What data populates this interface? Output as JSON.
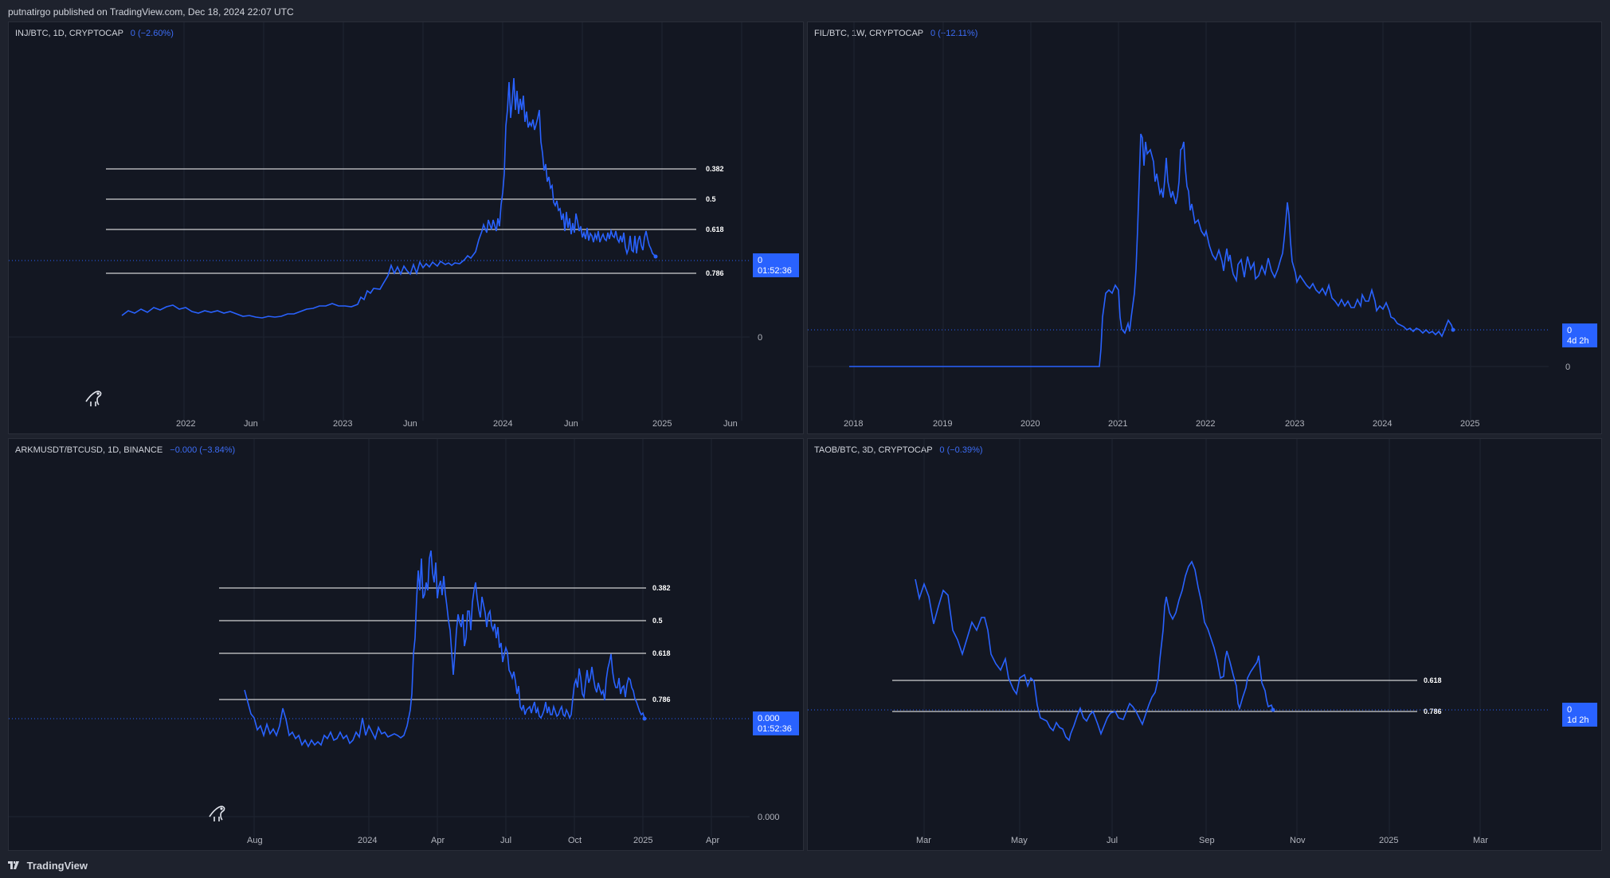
{
  "header": {
    "published": "putnatirgo published on TradingView.com, Dec 18, 2024 22:07 UTC"
  },
  "footer": {
    "brand": "TradingView",
    "logo_icon": "tradingview-logo-icon"
  },
  "colors": {
    "line": "#2962ff",
    "fib": "#ffffff",
    "price_box": "#2962ff",
    "background": "#131722"
  },
  "panels": [
    {
      "symbol": "INJ/BTC, 1D, CRYPTOCAP",
      "change": "0 (−2.60%)",
      "price_label": "0",
      "countdown": "01:52:36",
      "zero_label": "0",
      "x_ticks": [
        "2022",
        "Jun",
        "2023",
        "Jun",
        "2024",
        "Jun",
        "2025",
        "Jun"
      ],
      "fib_levels": [
        "0.382",
        "0.5",
        "0.618",
        "0.786"
      ],
      "has_logo": true
    },
    {
      "symbol": "FIL/BTC, 1W, CRYPTOCAP",
      "change": "0 (−12.11%)",
      "price_label": "0",
      "countdown": "4d 2h",
      "zero_label": "0",
      "x_ticks": [
        "2018",
        "2019",
        "2020",
        "2021",
        "2022",
        "2023",
        "2024",
        "2025"
      ],
      "fib_levels": [],
      "has_logo": false
    },
    {
      "symbol": "ARKMUSDT/BTCUSD, 1D, BINANCE",
      "change": "−0.000 (−3.84%)",
      "price_label": "0.000",
      "countdown": "01:52:36",
      "zero_label": "0.000",
      "x_ticks": [
        "Aug",
        "2024",
        "Apr",
        "Jul",
        "Oct",
        "2025",
        "Apr"
      ],
      "fib_levels": [
        "0.382",
        "0.5",
        "0.618",
        "0.786"
      ],
      "has_logo": true
    },
    {
      "symbol": "TAOB/BTC, 3D, CRYPTOCAP",
      "change": "0 (−0.39%)",
      "price_label": "0",
      "countdown": "1d 2h",
      "zero_label": "",
      "x_ticks": [
        "Mar",
        "May",
        "Jul",
        "Sep",
        "Nov",
        "2025",
        "Mar"
      ],
      "fib_levels": [
        "0.618",
        "0.786"
      ],
      "has_logo": false
    }
  ],
  "chart_data": [
    {
      "type": "line",
      "title": "INJ/BTC, 1D, CRYPTOCAP",
      "x": [
        "2021-09",
        "2021-11",
        "2022-01",
        "2022-03",
        "2022-05",
        "2022-07",
        "2022-09",
        "2022-11",
        "2023-01",
        "2023-03",
        "2023-05",
        "2023-07",
        "2023-09",
        "2023-11",
        "2023-12",
        "2024-01",
        "2024-03",
        "2024-05",
        "2024-07",
        "2024-09",
        "2024-11",
        "2024-12"
      ],
      "series": [
        {
          "values": [
            0.1,
            0.12,
            0.11,
            0.1,
            0.08,
            0.07,
            0.07,
            0.1,
            0.11,
            0.2,
            0.42,
            0.38,
            0.4,
            0.44,
            0.8,
            1.3,
            1.0,
            0.65,
            0.55,
            0.54,
            0.52,
            0.45
          ]
        }
      ],
      "y_range": [
        -0.4,
        1.4
      ],
      "fib_levels": [
        0.382,
        0.5,
        0.618,
        0.786
      ]
    },
    {
      "type": "line",
      "title": "FIL/BTC, 1W, CRYPTOCAP",
      "x": [
        "2017-12",
        "2018-06",
        "2019-01",
        "2019-06",
        "2020-01",
        "2020-06",
        "2020-10",
        "2020-11",
        "2021-01",
        "2021-04",
        "2021-06",
        "2021-09",
        "2022-01",
        "2022-06",
        "2023-01",
        "2023-04",
        "2023-06",
        "2024-01",
        "2024-04",
        "2024-09",
        "2024-12"
      ],
      "series": [
        {
          "values": [
            0,
            0,
            0,
            0,
            0,
            0,
            0,
            0.62,
            0.58,
            1.72,
            1.3,
            1.7,
            1.05,
            0.85,
            0.8,
            1.3,
            0.85,
            0.72,
            0.8,
            0.57,
            0.56
          ]
        }
      ],
      "y_range": [
        -0.5,
        2.0
      ]
    },
    {
      "type": "line",
      "title": "ARKMUSDT/BTCUSD, 1D, BINANCE",
      "x": [
        "2023-07",
        "2023-08",
        "2023-09",
        "2023-10",
        "2023-11",
        "2023-12",
        "2024-01",
        "2024-02",
        "2024-03",
        "2024-04",
        "2024-05",
        "2024-06",
        "2024-07",
        "2024-08",
        "2024-09",
        "2024-10",
        "2024-11",
        "2024-12"
      ],
      "series": [
        {
          "values": [
            0.68,
            0.59,
            0.55,
            0.56,
            0.52,
            0.55,
            0.57,
            0.6,
            1.15,
            0.95,
            0.96,
            0.82,
            0.7,
            0.68,
            0.72,
            0.76,
            0.75,
            0.66
          ]
        }
      ],
      "y_range": [
        0.3,
        1.3
      ],
      "fib_levels": [
        0.382,
        0.5,
        0.618,
        0.786
      ]
    },
    {
      "type": "line",
      "title": "TAOB/BTC, 3D, CRYPTOCAP",
      "x": [
        "2024-02-20",
        "2024-03-10",
        "2024-04-01",
        "2024-04-20",
        "2024-05-10",
        "2024-06-01",
        "2024-06-20",
        "2024-07-10",
        "2024-08-01",
        "2024-08-20",
        "2024-09-10",
        "2024-10-01",
        "2024-10-20",
        "2024-11-10",
        "2024-11-25",
        "2024-12-10",
        "2024-12-18"
      ],
      "series": [
        {
          "values": [
            1.25,
            1.2,
            0.98,
            0.92,
            0.85,
            0.72,
            0.6,
            0.55,
            0.62,
            0.66,
            0.6,
            1.1,
            1.3,
            0.95,
            0.74,
            0.88,
            0.66
          ]
        }
      ],
      "y_range": [
        0.3,
        1.5
      ],
      "fib_levels": [
        0.618,
        0.786
      ]
    }
  ]
}
